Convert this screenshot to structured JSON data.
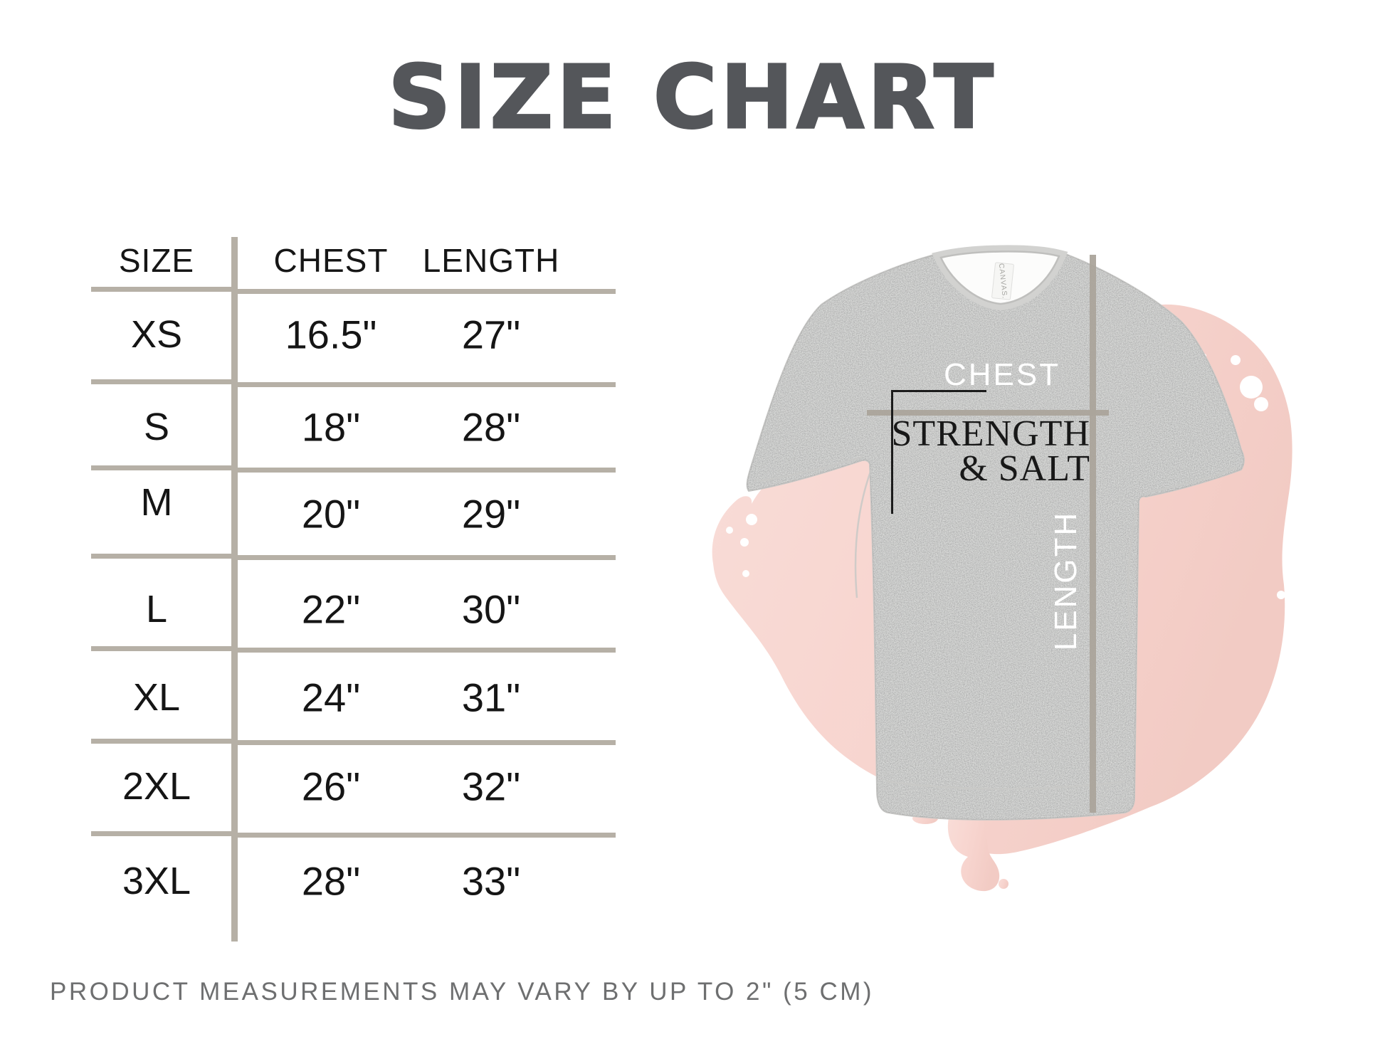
{
  "title": "SIZE CHART",
  "table": {
    "headers": [
      "SIZE",
      "CHEST",
      "LENGTH"
    ],
    "rows": [
      {
        "size": "XS",
        "chest": "16.5\"",
        "length": "27\""
      },
      {
        "size": "S",
        "chest": "18\"",
        "length": "28\""
      },
      {
        "size": "M",
        "chest": "20\"",
        "length": "29\""
      },
      {
        "size": "L",
        "chest": "22\"",
        "length": "30\""
      },
      {
        "size": "XL",
        "chest": "24\"",
        "length": "31\""
      },
      {
        "size": "2XL",
        "chest": "26\"",
        "length": "32\""
      },
      {
        "size": "3XL",
        "chest": "28\"",
        "length": "33\""
      }
    ]
  },
  "shirt": {
    "print_line1": "STRENGTH",
    "print_line2": "& SALT",
    "chest_label": "CHEST",
    "length_label": "LENGTH",
    "neck_tag": "CANVAS."
  },
  "footer": "PRODUCT MEASUREMENTS MAY VARY BY UP TO 2\" (5 CM)",
  "colors": {
    "title_gray": "#54565a",
    "table_line_tan": "#b6b0a6",
    "measure_line_tan": "#aba49b",
    "shirt_gray": "#dcdddb",
    "blob_pink": "#f6d2cc",
    "text_dark": "#1a1a1a",
    "footer_gray": "#6e6f70",
    "label_white": "#ffffff"
  }
}
